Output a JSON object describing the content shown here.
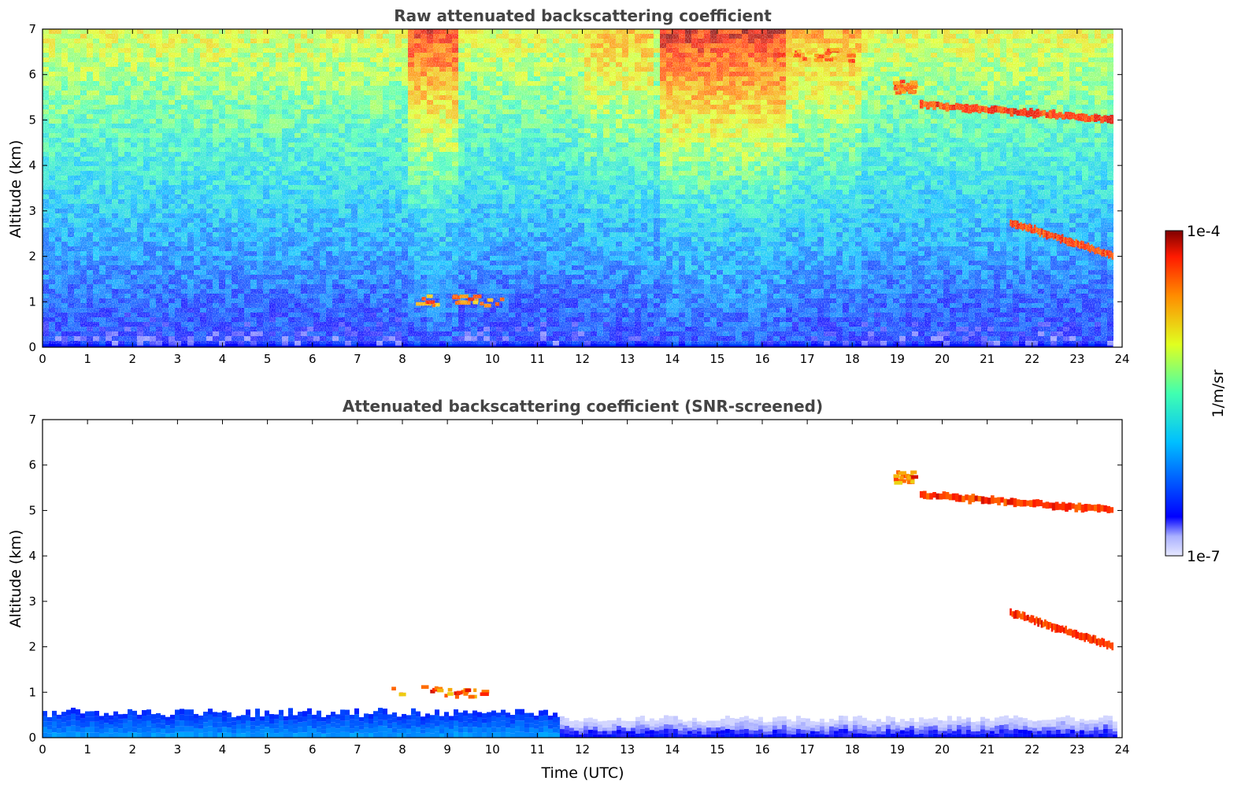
{
  "chart_data": [
    {
      "type": "heatmap",
      "title": "Raw attenuated backscattering coefficient",
      "xlabel": "",
      "ylabel": "Altitude (km)",
      "xlim": [
        0,
        24
      ],
      "ylim": [
        0,
        7
      ],
      "xticks": [
        "0",
        "1",
        "2",
        "3",
        "4",
        "5",
        "6",
        "7",
        "8",
        "9",
        "10",
        "11",
        "12",
        "13",
        "14",
        "15",
        "16",
        "17",
        "18",
        "19",
        "20",
        "21",
        "22",
        "23",
        "24"
      ],
      "yticks": [
        "0",
        "1",
        "2",
        "3",
        "4",
        "5",
        "6",
        "7"
      ],
      "features": [
        {
          "kind": "surface_layer",
          "x": [
            0,
            23.8
          ],
          "y": [
            0,
            0.1
          ],
          "value": "1e-7"
        },
        {
          "kind": "noise_gradient",
          "low_alt_level": "low",
          "high_alt_level": "high"
        },
        {
          "kind": "cloud_layer",
          "x": [
            19.5,
            23.8
          ],
          "y_start": 5.35,
          "y_end": 5.0,
          "value": "1e-4"
        },
        {
          "kind": "cloud_layer",
          "x": [
            21.5,
            23.8
          ],
          "y_start": 2.75,
          "y_end": 2.0,
          "value": "1e-4"
        },
        {
          "kind": "cloud_patch",
          "x": [
            8.1,
            10.2
          ],
          "y": 1.0,
          "value": "1e-4"
        },
        {
          "kind": "cloud_patch",
          "x": [
            16.3,
            18.0
          ],
          "y": 6.4,
          "value": "1e-4"
        },
        {
          "kind": "cloud_patch",
          "x": [
            18.9,
            19.3
          ],
          "y": 5.7,
          "value": "1e-4"
        }
      ]
    },
    {
      "type": "heatmap",
      "title": "Attenuated backscattering coefficient (SNR-screened)",
      "xlabel": "Time (UTC)",
      "ylabel": "Altitude (km)",
      "xlim": [
        0,
        24
      ],
      "ylim": [
        0,
        7
      ],
      "xticks": [
        "0",
        "1",
        "2",
        "3",
        "4",
        "5",
        "6",
        "7",
        "8",
        "9",
        "10",
        "11",
        "12",
        "13",
        "14",
        "15",
        "16",
        "17",
        "18",
        "19",
        "20",
        "21",
        "22",
        "23",
        "24"
      ],
      "yticks": [
        "0",
        "1",
        "2",
        "3",
        "4",
        "5",
        "6",
        "7"
      ],
      "features": [
        {
          "kind": "boundary_layer",
          "x": [
            0,
            11.5
          ],
          "y": [
            0,
            0.6
          ],
          "value": "1e-6"
        },
        {
          "kind": "boundary_layer",
          "x": [
            11.5,
            23.8
          ],
          "y": [
            0,
            0.45
          ],
          "value": "1e-7"
        },
        {
          "kind": "cloud_layer",
          "x": [
            19.5,
            23.8
          ],
          "y_start": 5.35,
          "y_end": 5.0,
          "value": "1e-4"
        },
        {
          "kind": "cloud_layer",
          "x": [
            21.5,
            23.8
          ],
          "y_start": 2.75,
          "y_end": 2.0,
          "value": "1e-4"
        },
        {
          "kind": "cloud_patch",
          "x": [
            7.3,
            10.3
          ],
          "y": 1.0,
          "value": "1e-4"
        },
        {
          "kind": "cloud_patch",
          "x": [
            18.9,
            19.3
          ],
          "y": 5.7,
          "value": "1e-4"
        }
      ]
    }
  ],
  "colorbar": {
    "max_label": "1e-4",
    "min_label": "1e-7",
    "unit_label": "1/m/sr",
    "colormap": "jet",
    "low_end_color": "#e6e8ff",
    "high_end_color": "#7f0000"
  }
}
